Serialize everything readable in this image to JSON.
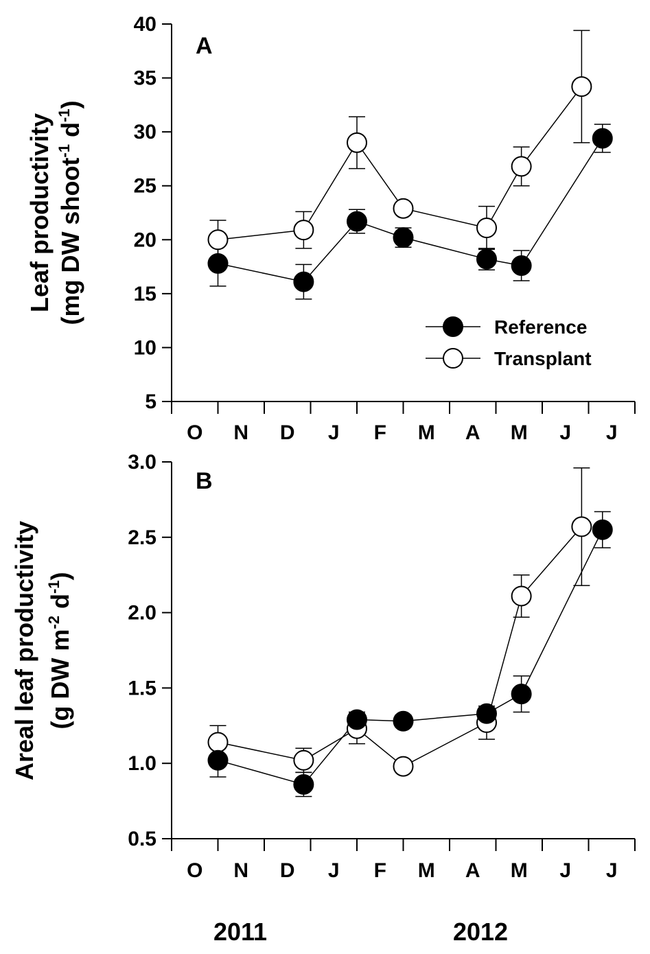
{
  "chart_data": [
    {
      "type": "line",
      "panel": "A",
      "ylabel_line1": "Leaf productivity",
      "ylabel_line2_prefix": "(mg DW shoot",
      "ylabel_line2_sup1": "-1",
      "ylabel_line2_mid": " d",
      "ylabel_line2_sup2": "-1",
      "ylabel_line2_suffix": ")",
      "ylim": [
        5,
        40
      ],
      "yticks": [
        "5",
        "10",
        "15",
        "20",
        "25",
        "30",
        "35",
        "40"
      ],
      "month_labels": [
        "O",
        "N",
        "D",
        "J",
        "F",
        "M",
        "A",
        "M",
        "J",
        "J"
      ],
      "series": [
        {
          "name": "Reference",
          "fill": "#000000",
          "x": [
            1,
            2.85,
            4,
            5,
            6.8,
            7.55,
            9.3
          ],
          "y": [
            17.8,
            16.1,
            21.7,
            20.2,
            18.2,
            17.6,
            29.4
          ],
          "err": [
            2.1,
            1.6,
            1.1,
            0.9,
            1.0,
            1.4,
            1.3
          ]
        },
        {
          "name": "Transplant",
          "fill": "#ffffff",
          "x": [
            1,
            2.85,
            4,
            5,
            6.8,
            7.55,
            8.85
          ],
          "y": [
            20.0,
            20.9,
            29.0,
            22.9,
            21.1,
            26.8,
            34.2
          ],
          "err": [
            1.8,
            1.7,
            2.4,
            0.4,
            2.0,
            1.8,
            5.2
          ]
        }
      ],
      "legend_position": "lower-right"
    },
    {
      "type": "line",
      "panel": "B",
      "ylabel_line1": "Areal leaf productivity",
      "ylabel_line2_prefix": "(g DW m",
      "ylabel_line2_sup1": "-2",
      "ylabel_line2_mid": " d",
      "ylabel_line2_sup2": "-1",
      "ylabel_line2_suffix": ")",
      "ylim": [
        0.5,
        3.0
      ],
      "yticks": [
        "0.5",
        "1.0",
        "1.5",
        "2.0",
        "2.5",
        "3.0"
      ],
      "month_labels": [
        "O",
        "N",
        "D",
        "J",
        "F",
        "M",
        "A",
        "M",
        "J",
        "J"
      ],
      "series": [
        {
          "name": "Reference",
          "fill": "#000000",
          "x": [
            1,
            2.85,
            4,
            5,
            6.8,
            7.55,
            9.3
          ],
          "y": [
            1.02,
            0.86,
            1.29,
            1.28,
            1.33,
            1.46,
            2.55
          ],
          "err": [
            0.11,
            0.08,
            0.05,
            0.04,
            0.03,
            0.12,
            0.12
          ]
        },
        {
          "name": "Transplant",
          "fill": "#ffffff",
          "x": [
            1,
            2.85,
            4,
            5,
            6.8,
            7.55,
            8.85
          ],
          "y": [
            1.14,
            1.02,
            1.23,
            0.98,
            1.27,
            2.11,
            2.57
          ],
          "err": [
            0.11,
            0.08,
            0.1,
            0.01,
            0.11,
            0.14,
            0.39
          ]
        }
      ]
    }
  ],
  "year_labels": [
    "2011",
    "2012"
  ]
}
